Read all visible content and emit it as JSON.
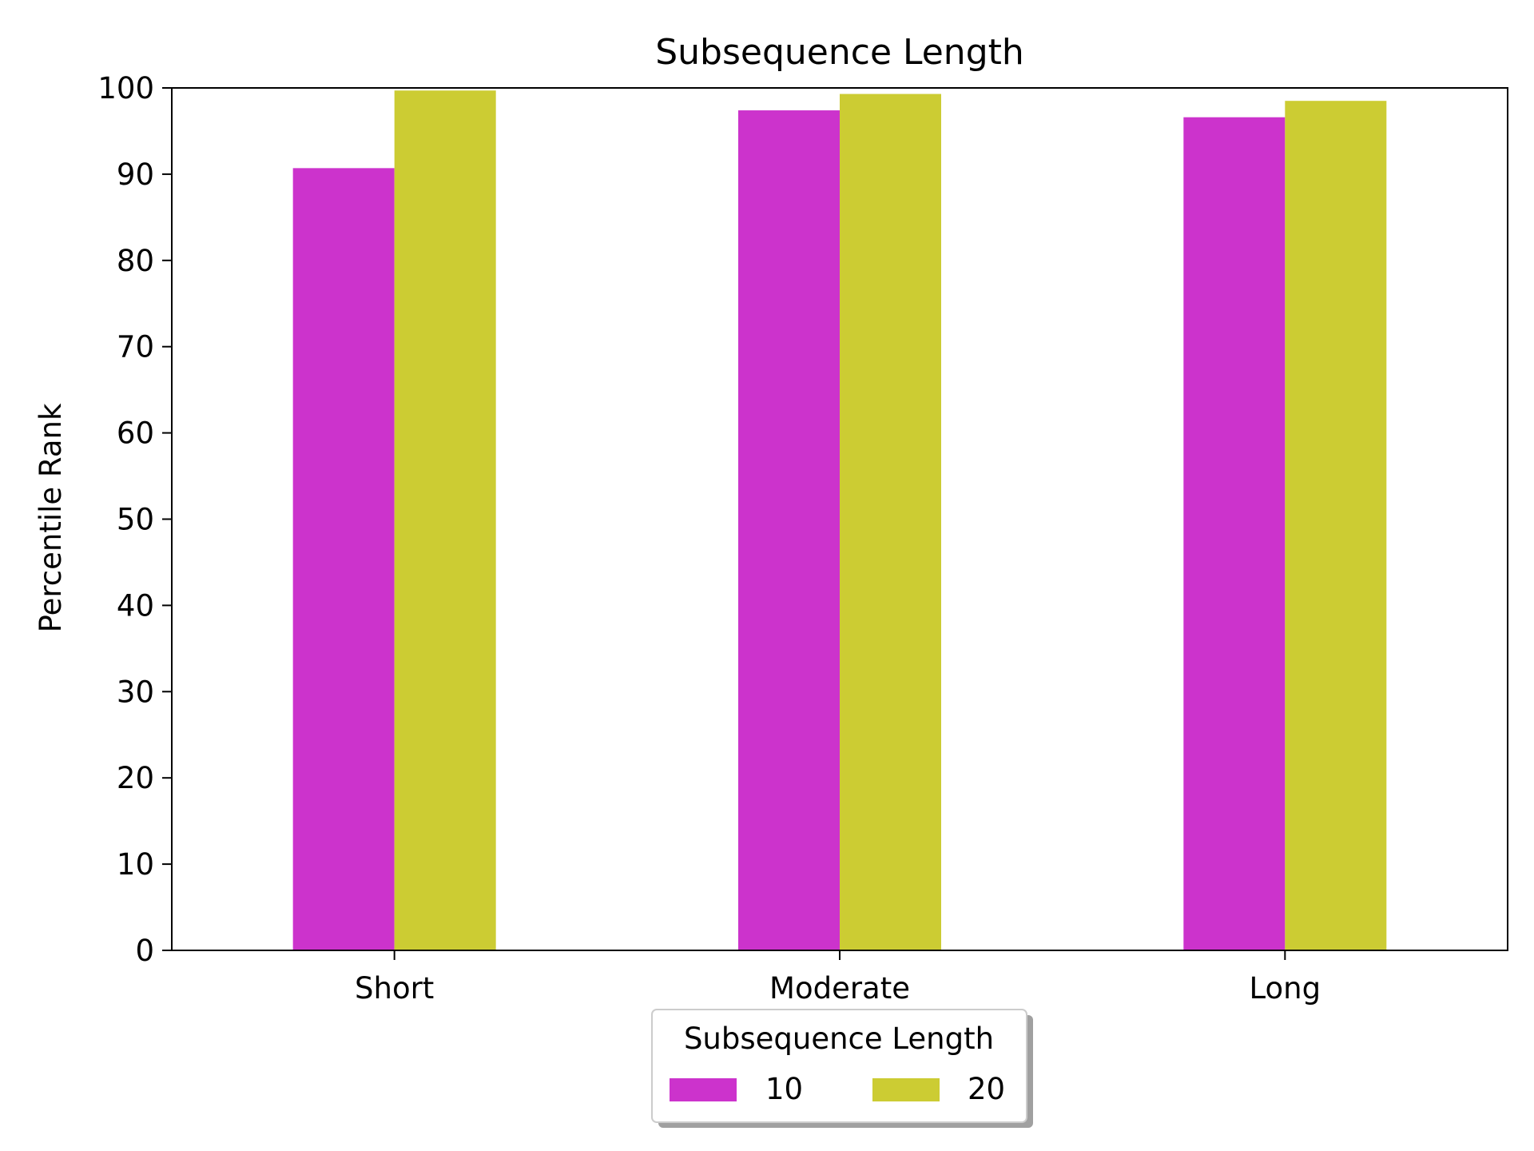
{
  "chart_data": {
    "type": "bar",
    "title": "Subsequence Length",
    "xlabel": "",
    "ylabel": "Percentile Rank",
    "categories": [
      "Short",
      "Moderate",
      "Long"
    ],
    "ylim": [
      0,
      100
    ],
    "yticks": [
      0,
      10,
      20,
      30,
      40,
      50,
      60,
      70,
      80,
      90,
      100
    ],
    "grid": false,
    "legend": {
      "title": "Subsequence Length",
      "placement": "bottom-center",
      "columns": 2
    },
    "series": [
      {
        "name": "10",
        "color": "#cc33cc",
        "values": [
          90.7,
          97.4,
          96.6
        ]
      },
      {
        "name": "20",
        "color": "#cccc33",
        "values": [
          99.7,
          99.3,
          98.5
        ]
      }
    ]
  }
}
